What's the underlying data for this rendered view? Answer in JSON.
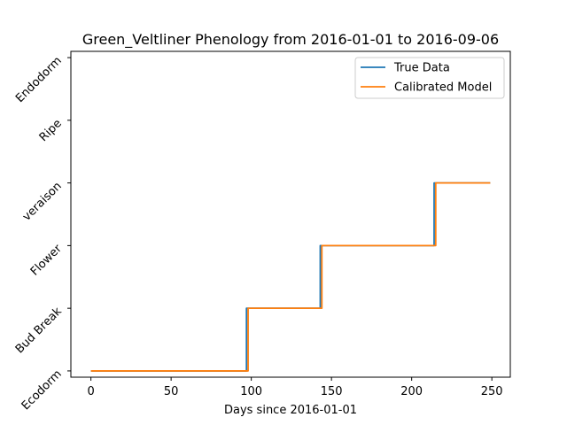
{
  "chart_data": {
    "type": "line",
    "title": "Green_Veltliner Phenology from 2016-01-01 to 2016-09-06",
    "xlabel": "Days since 2016-01-01",
    "ylabel": "",
    "xlim": [
      -12.5,
      261.5
    ],
    "ylim": [
      -0.1,
      5.1
    ],
    "xticks": [
      0,
      50,
      100,
      150,
      200,
      250
    ],
    "xtick_labels": [
      "0",
      "50",
      "100",
      "150",
      "200",
      "250"
    ],
    "yticks": [
      0,
      1,
      2,
      3,
      4,
      5
    ],
    "ytick_labels": [
      "Ecodorm",
      "Bud Break",
      "Flower",
      "veraison",
      "Ripe",
      "Endodorm"
    ],
    "grid": false,
    "legend_placement": "upper right",
    "series": [
      {
        "name": "True Data",
        "color": "#1f77b4",
        "x": [
          0,
          97,
          97,
          143,
          143,
          214,
          214,
          249
        ],
        "y": [
          0,
          0,
          1,
          1,
          2,
          2,
          3,
          3
        ]
      },
      {
        "name": "Calibrated Model",
        "color": "#ff7f0e",
        "x": [
          0,
          98,
          98,
          144,
          144,
          215,
          215,
          249
        ],
        "y": [
          0,
          0,
          1,
          1,
          2,
          2,
          3,
          3
        ]
      }
    ]
  }
}
